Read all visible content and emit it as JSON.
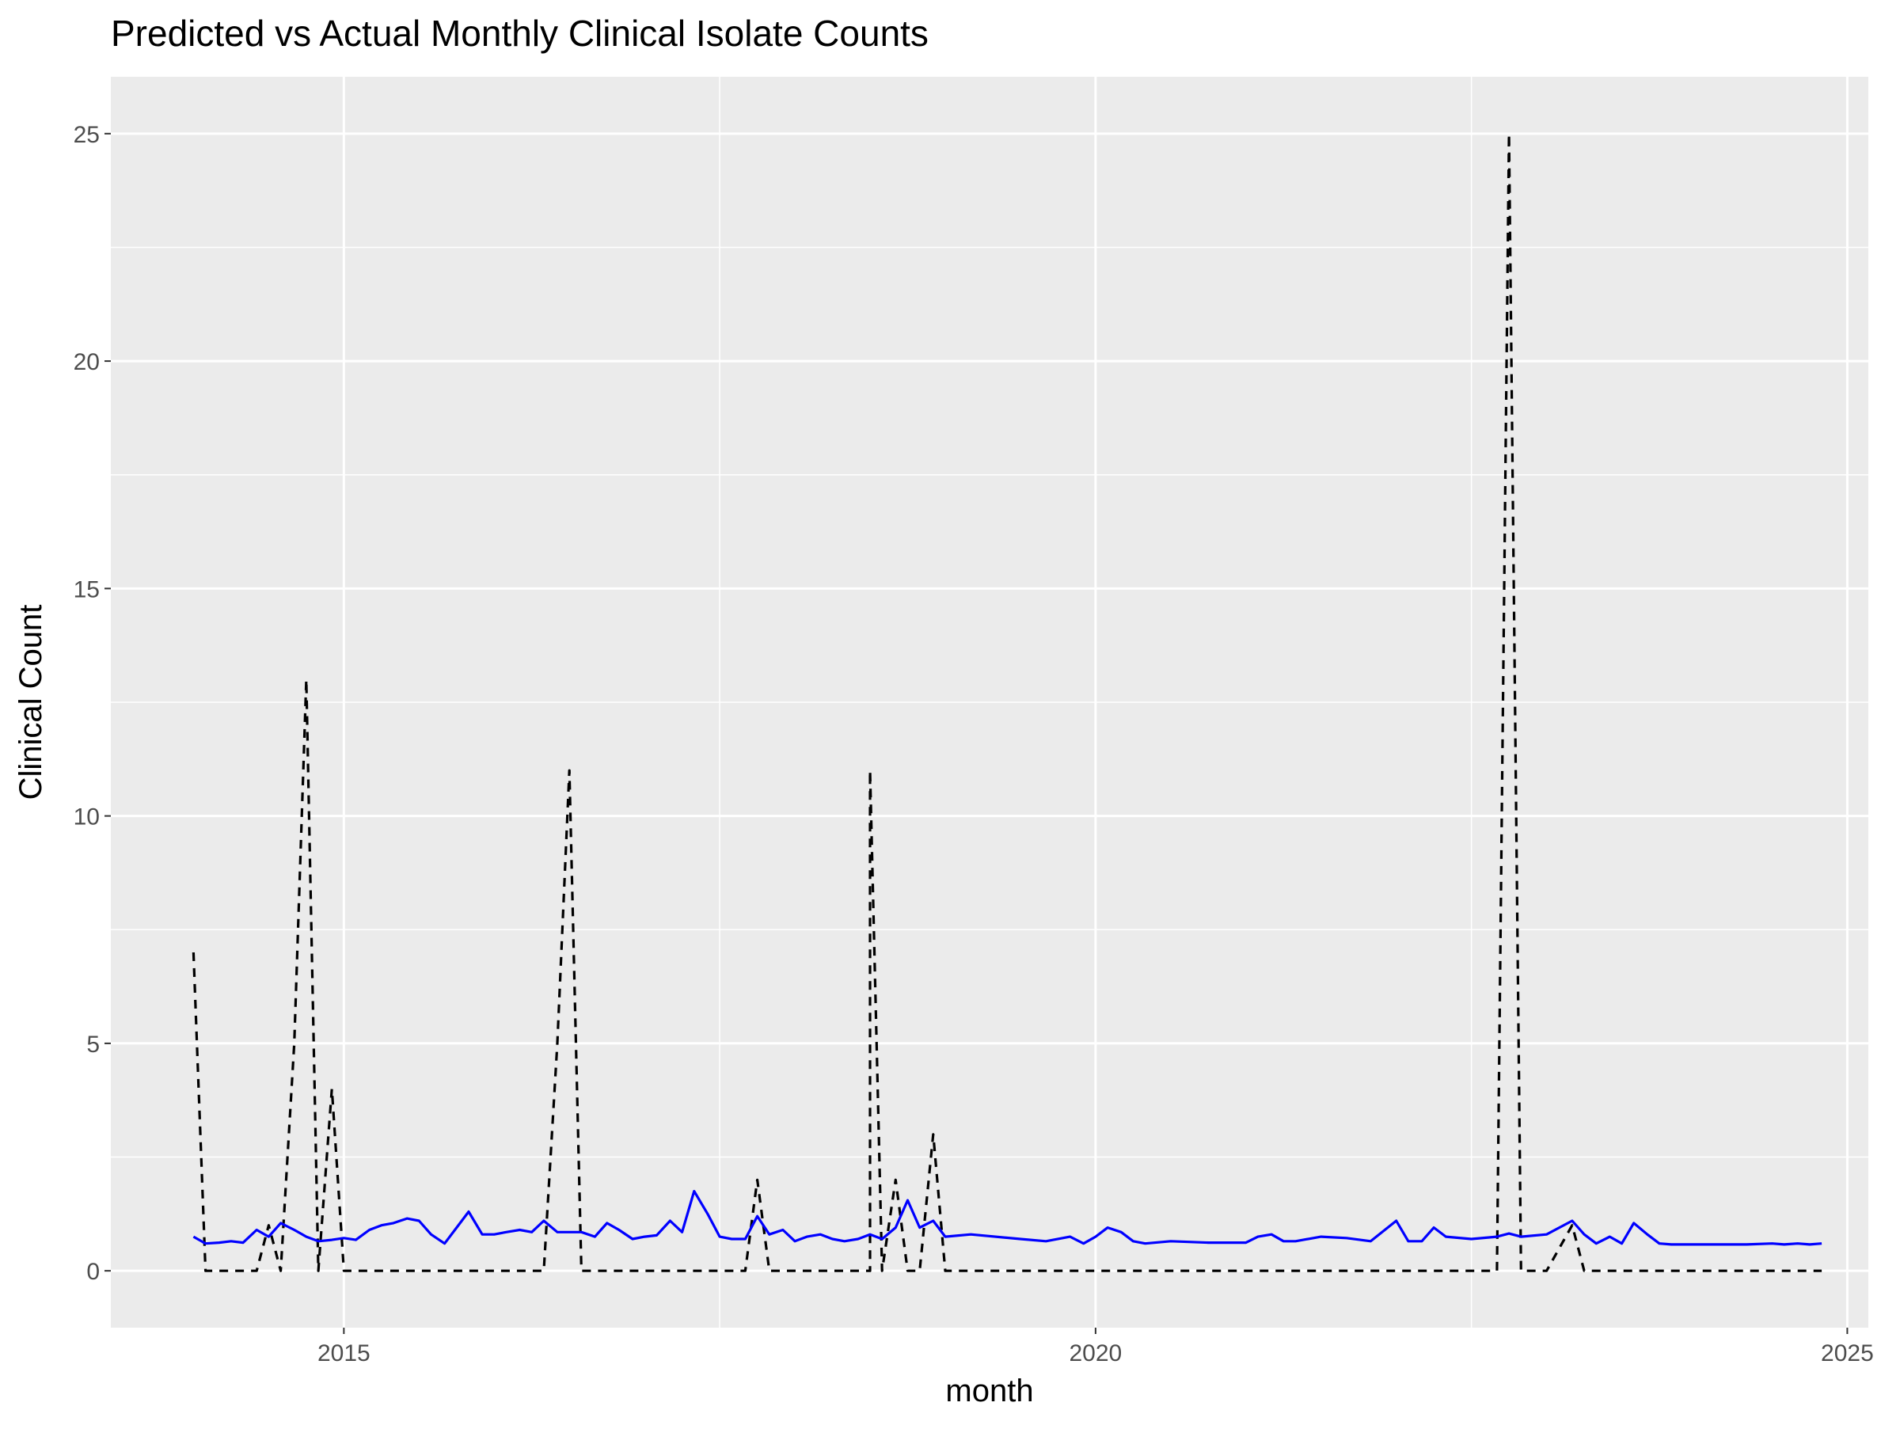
{
  "chart_data": {
    "type": "line",
    "title": "Predicted vs Actual Monthly Clinical Isolate Counts",
    "xlabel": "month",
    "ylabel": "Clinical Count",
    "xlim": [
      2013.45,
      2025.14
    ],
    "ylim": [
      -1.25,
      26.25
    ],
    "x_ticks": [
      2015,
      2020,
      2025
    ],
    "x_tick_labels": [
      "2015",
      "2020",
      "2025"
    ],
    "y_ticks": [
      0,
      5,
      10,
      15,
      20,
      25
    ],
    "y_tick_labels": [
      "0",
      "5",
      "10",
      "15",
      "20",
      "25"
    ],
    "grid": true,
    "legend": "none",
    "series": [
      {
        "style": "dashed",
        "color": "#000000",
        "points": [
          [
            2014.0,
            7
          ],
          [
            2014.08,
            0
          ],
          [
            2014.17,
            0
          ],
          [
            2014.25,
            0
          ],
          [
            2014.33,
            0
          ],
          [
            2014.42,
            0
          ],
          [
            2014.5,
            1
          ],
          [
            2014.58,
            0
          ],
          [
            2014.67,
            5
          ],
          [
            2014.75,
            13
          ],
          [
            2014.83,
            0
          ],
          [
            2014.92,
            4
          ],
          [
            2015.0,
            0
          ],
          [
            2015.5,
            0
          ],
          [
            2016.0,
            0
          ],
          [
            2016.33,
            0
          ],
          [
            2016.42,
            5
          ],
          [
            2016.5,
            11
          ],
          [
            2016.58,
            0
          ],
          [
            2017.0,
            0
          ],
          [
            2017.5,
            0
          ],
          [
            2017.67,
            0
          ],
          [
            2017.75,
            2
          ],
          [
            2017.83,
            0
          ],
          [
            2018.0,
            0
          ],
          [
            2018.5,
            0
          ],
          [
            2018.42,
            0
          ],
          [
            2018.5,
            11
          ],
          [
            2018.58,
            0
          ],
          [
            2018.67,
            2
          ],
          [
            2018.75,
            0
          ],
          [
            2018.83,
            0
          ],
          [
            2018.92,
            3
          ],
          [
            2019.0,
            0
          ],
          [
            2019.5,
            0
          ],
          [
            2020.0,
            0
          ],
          [
            2020.5,
            0
          ],
          [
            2021.0,
            0
          ],
          [
            2021.5,
            0
          ],
          [
            2022.0,
            0
          ],
          [
            2022.5,
            0
          ],
          [
            2022.67,
            0
          ],
          [
            2022.75,
            25
          ],
          [
            2022.83,
            0
          ],
          [
            2023.0,
            0
          ],
          [
            2023.17,
            1
          ],
          [
            2023.25,
            0
          ],
          [
            2023.5,
            0
          ],
          [
            2024.0,
            0
          ],
          [
            2024.5,
            0
          ],
          [
            2024.83,
            0
          ]
        ]
      },
      {
        "style": "solid",
        "color": "#0000ff",
        "points": [
          [
            2014.0,
            0.75
          ],
          [
            2014.08,
            0.6
          ],
          [
            2014.17,
            0.62
          ],
          [
            2014.25,
            0.65
          ],
          [
            2014.33,
            0.62
          ],
          [
            2014.42,
            0.9
          ],
          [
            2014.5,
            0.75
          ],
          [
            2014.58,
            1.05
          ],
          [
            2014.67,
            0.9
          ],
          [
            2014.75,
            0.75
          ],
          [
            2014.83,
            0.65
          ],
          [
            2014.92,
            0.68
          ],
          [
            2015.0,
            0.72
          ],
          [
            2015.08,
            0.68
          ],
          [
            2015.17,
            0.9
          ],
          [
            2015.25,
            1.0
          ],
          [
            2015.33,
            1.05
          ],
          [
            2015.42,
            1.15
          ],
          [
            2015.5,
            1.1
          ],
          [
            2015.58,
            0.8
          ],
          [
            2015.67,
            0.6
          ],
          [
            2015.75,
            0.95
          ],
          [
            2015.83,
            1.3
          ],
          [
            2015.92,
            0.8
          ],
          [
            2016.0,
            0.8
          ],
          [
            2016.08,
            0.85
          ],
          [
            2016.17,
            0.9
          ],
          [
            2016.25,
            0.85
          ],
          [
            2016.33,
            1.1
          ],
          [
            2016.42,
            0.85
          ],
          [
            2016.5,
            0.85
          ],
          [
            2016.58,
            0.85
          ],
          [
            2016.67,
            0.75
          ],
          [
            2016.75,
            1.05
          ],
          [
            2016.83,
            0.9
          ],
          [
            2016.92,
            0.7
          ],
          [
            2017.0,
            0.75
          ],
          [
            2017.08,
            0.78
          ],
          [
            2017.17,
            1.1
          ],
          [
            2017.25,
            0.85
          ],
          [
            2017.33,
            1.75
          ],
          [
            2017.42,
            1.25
          ],
          [
            2017.5,
            0.75
          ],
          [
            2017.58,
            0.7
          ],
          [
            2017.67,
            0.7
          ],
          [
            2017.75,
            1.2
          ],
          [
            2017.83,
            0.8
          ],
          [
            2017.92,
            0.9
          ],
          [
            2018.0,
            0.65
          ],
          [
            2018.08,
            0.75
          ],
          [
            2018.17,
            0.8
          ],
          [
            2018.25,
            0.7
          ],
          [
            2018.33,
            0.65
          ],
          [
            2018.42,
            0.7
          ],
          [
            2018.5,
            0.8
          ],
          [
            2018.58,
            0.7
          ],
          [
            2018.67,
            0.95
          ],
          [
            2018.75,
            1.55
          ],
          [
            2018.83,
            0.95
          ],
          [
            2018.92,
            1.1
          ],
          [
            2019.0,
            0.75
          ],
          [
            2019.17,
            0.8
          ],
          [
            2019.5,
            0.7
          ],
          [
            2019.67,
            0.65
          ],
          [
            2019.83,
            0.75
          ],
          [
            2019.92,
            0.6
          ],
          [
            2020.0,
            0.75
          ],
          [
            2020.08,
            0.95
          ],
          [
            2020.17,
            0.85
          ],
          [
            2020.25,
            0.65
          ],
          [
            2020.33,
            0.6
          ],
          [
            2020.5,
            0.65
          ],
          [
            2020.75,
            0.62
          ],
          [
            2021.0,
            0.62
          ],
          [
            2021.08,
            0.75
          ],
          [
            2021.17,
            0.8
          ],
          [
            2021.25,
            0.65
          ],
          [
            2021.33,
            0.65
          ],
          [
            2021.5,
            0.75
          ],
          [
            2021.67,
            0.72
          ],
          [
            2021.83,
            0.65
          ],
          [
            2022.0,
            1.1
          ],
          [
            2022.08,
            0.65
          ],
          [
            2022.17,
            0.65
          ],
          [
            2022.25,
            0.95
          ],
          [
            2022.33,
            0.75
          ],
          [
            2022.5,
            0.7
          ],
          [
            2022.67,
            0.75
          ],
          [
            2022.75,
            0.82
          ],
          [
            2022.83,
            0.75
          ],
          [
            2023.0,
            0.8
          ],
          [
            2023.17,
            1.1
          ],
          [
            2023.25,
            0.8
          ],
          [
            2023.33,
            0.6
          ],
          [
            2023.42,
            0.75
          ],
          [
            2023.5,
            0.6
          ],
          [
            2023.58,
            1.05
          ],
          [
            2023.67,
            0.8
          ],
          [
            2023.75,
            0.6
          ],
          [
            2023.83,
            0.58
          ],
          [
            2024.0,
            0.58
          ],
          [
            2024.33,
            0.58
          ],
          [
            2024.5,
            0.6
          ],
          [
            2024.58,
            0.58
          ],
          [
            2024.67,
            0.6
          ],
          [
            2024.75,
            0.58
          ],
          [
            2024.83,
            0.6
          ]
        ]
      }
    ]
  }
}
